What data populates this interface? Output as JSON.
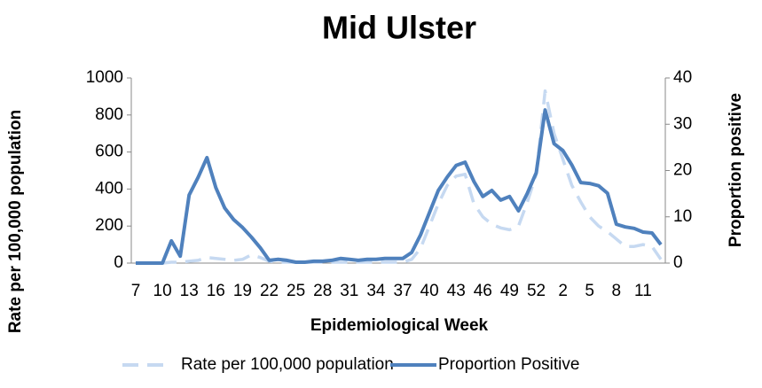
{
  "chart_data": {
    "type": "line",
    "title": "Mid Ulster",
    "x_label": "Epidemiological Week",
    "y_label": "Rate per 100,000 population",
    "y2_label": "Proportion positive",
    "categories": [
      "7",
      null,
      null,
      "10",
      null,
      null,
      "13",
      null,
      null,
      "16",
      null,
      null,
      "19",
      null,
      null,
      "22",
      null,
      null,
      "25",
      null,
      null,
      "28",
      null,
      null,
      "31",
      null,
      null,
      "34",
      null,
      null,
      "37",
      null,
      null,
      "40",
      null,
      null,
      "43",
      null,
      null,
      "46",
      null,
      null,
      "49",
      null,
      null,
      "52",
      null,
      null,
      "2",
      null,
      null,
      "5",
      null,
      null,
      "8",
      null,
      null,
      "11",
      null,
      null
    ],
    "ylim": [
      0,
      1000
    ],
    "yticks": [
      0,
      200,
      400,
      600,
      800,
      1000
    ],
    "y2lim": [
      0,
      40
    ],
    "y2ticks": [
      0,
      10,
      20,
      30,
      40
    ],
    "series": [
      {
        "name": "Rate per 100,000 population",
        "color": "#c6d9f1",
        "dashed": true,
        "values": [
          0,
          0,
          0,
          0,
          5,
          5,
          10,
          15,
          30,
          25,
          20,
          15,
          20,
          45,
          30,
          10,
          5,
          5,
          5,
          5,
          5,
          5,
          5,
          5,
          5,
          5,
          5,
          5,
          5,
          5,
          5,
          20,
          80,
          200,
          320,
          420,
          470,
          480,
          320,
          250,
          210,
          190,
          180,
          200,
          330,
          480,
          930,
          700,
          560,
          420,
          330,
          250,
          200,
          170,
          130,
          90,
          90,
          100,
          90,
          20
        ]
      },
      {
        "name": "Proportion Positive",
        "color": "#4f81bd",
        "axis": "y2",
        "values": [
          0,
          0,
          0,
          0,
          4.8,
          1.5,
          14.7,
          18.5,
          22.8,
          16.3,
          11.9,
          9.4,
          7.7,
          5.6,
          3.3,
          0.6,
          0.8,
          0.6,
          0.2,
          0.2,
          0.4,
          0.4,
          0.6,
          1.0,
          0.8,
          0.6,
          0.8,
          0.8,
          1.0,
          1.0,
          1.0,
          2.3,
          6.1,
          10.9,
          15.7,
          18.6,
          21.1,
          21.8,
          17.6,
          14.4,
          15.7,
          13.6,
          14.4,
          11.3,
          15.1,
          19.5,
          33.1,
          25.8,
          24.3,
          21.2,
          17.4,
          17.2,
          16.7,
          15.1,
          8.4,
          7.8,
          7.5,
          6.7,
          6.5,
          4.0
        ]
      }
    ]
  }
}
